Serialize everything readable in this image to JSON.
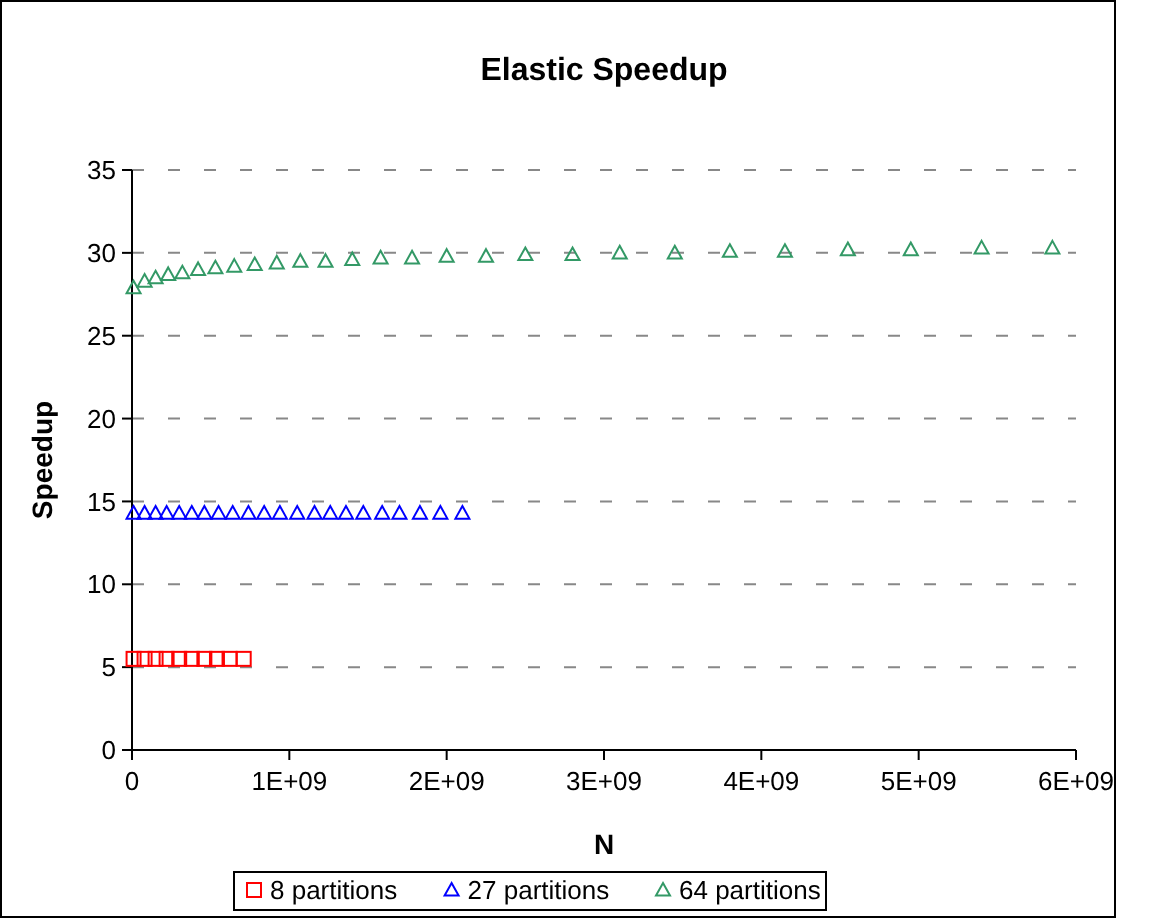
{
  "chart_data": {
    "type": "scatter",
    "title": "Elastic Speedup",
    "xlabel": "N",
    "ylabel": "Speedup",
    "xlim": [
      0,
      6000000000
    ],
    "xticks": [
      0,
      {
        "value": 1000000000,
        "label": "1E+09"
      },
      {
        "value": 2000000000,
        "label": "2E+09"
      },
      {
        "value": 3000000000,
        "label": "3E+09"
      },
      {
        "value": 4000000000,
        "label": "4E+09"
      },
      {
        "value": 5000000000,
        "label": "5E+09"
      },
      {
        "value": 6000000000,
        "label": "6E+09"
      }
    ],
    "ylim": [
      0,
      35
    ],
    "yticks": [
      0,
      5,
      10,
      15,
      20,
      25,
      30,
      35
    ],
    "grid": "y",
    "legend": "bottom",
    "series": [
      {
        "name": "8 partitions",
        "color": "#ff0000",
        "marker": "square",
        "x": [
          10000000,
          80000000,
          150000000,
          220000000,
          300000000,
          380000000,
          460000000,
          540000000,
          620000000,
          710000000
        ],
        "values": [
          5.5,
          5.5,
          5.5,
          5.5,
          5.5,
          5.5,
          5.5,
          5.5,
          5.5,
          5.5
        ]
      },
      {
        "name": "27 partitions",
        "color": "#0000ff",
        "marker": "triangle",
        "x": [
          10000000,
          80000000,
          150000000,
          220000000,
          300000000,
          380000000,
          460000000,
          550000000,
          640000000,
          740000000,
          840000000,
          940000000,
          1050000000,
          1160000000,
          1260000000,
          1360000000,
          1470000000,
          1590000000,
          1700000000,
          1830000000,
          1960000000,
          2100000000
        ],
        "values": [
          14.3,
          14.3,
          14.3,
          14.3,
          14.3,
          14.3,
          14.3,
          14.3,
          14.3,
          14.3,
          14.3,
          14.3,
          14.3,
          14.3,
          14.3,
          14.3,
          14.3,
          14.3,
          14.3,
          14.3,
          14.3,
          14.3
        ]
      },
      {
        "name": "64 partitions",
        "color": "#339966",
        "marker": "triangle",
        "x": [
          10000000,
          80000000,
          150000000,
          230000000,
          320000000,
          420000000,
          530000000,
          650000000,
          780000000,
          920000000,
          1070000000,
          1230000000,
          1400000000,
          1580000000,
          1780000000,
          2000000000,
          2250000000,
          2500000000,
          2800000000,
          3100000000,
          3450000000,
          3800000000,
          4150000000,
          4550000000,
          4950000000,
          5400000000,
          5850000000
        ],
        "values": [
          27.9,
          28.3,
          28.5,
          28.7,
          28.8,
          29.0,
          29.1,
          29.2,
          29.3,
          29.4,
          29.5,
          29.5,
          29.6,
          29.7,
          29.7,
          29.8,
          29.8,
          29.9,
          29.9,
          30.0,
          30.0,
          30.1,
          30.1,
          30.2,
          30.2,
          30.3,
          30.3
        ]
      }
    ]
  }
}
